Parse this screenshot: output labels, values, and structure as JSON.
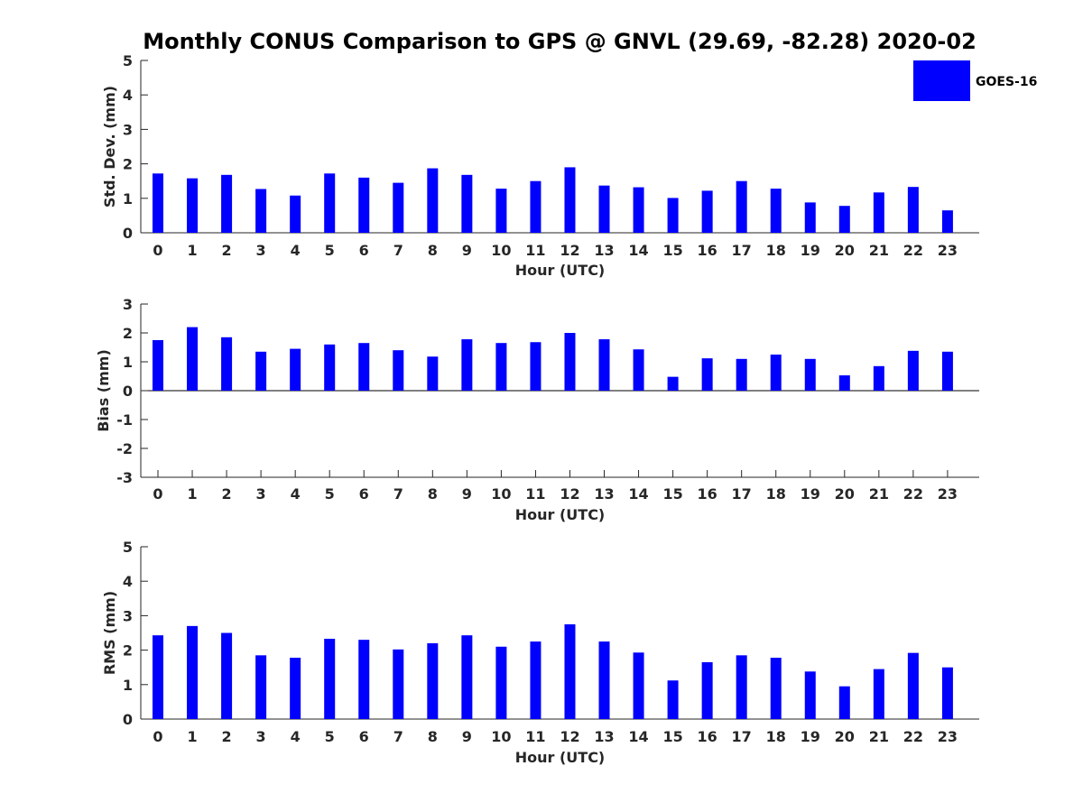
{
  "title": "Monthly CONUS Comparison to GPS @ GNVL (29.69, -82.28) 2020-02",
  "legend": {
    "label": "GOES-16",
    "color": "#0000ff",
    "placement": "top-right"
  },
  "chart_data": [
    {
      "type": "bar",
      "xlabel": "Hour (UTC)",
      "ylabel": "Std. Dev. (mm)",
      "ylim": [
        0,
        5
      ],
      "yticks": [
        "0",
        "1",
        "2",
        "3",
        "4",
        "5"
      ],
      "categories": [
        "0",
        "1",
        "2",
        "3",
        "4",
        "5",
        "6",
        "7",
        "8",
        "9",
        "10",
        "11",
        "12",
        "13",
        "14",
        "15",
        "16",
        "17",
        "18",
        "19",
        "20",
        "21",
        "22",
        "23"
      ],
      "series": [
        {
          "name": "GOES-16",
          "values": [
            1.72,
            1.58,
            1.68,
            1.27,
            1.08,
            1.72,
            1.6,
            1.45,
            1.87,
            1.68,
            1.28,
            1.5,
            1.9,
            1.37,
            1.32,
            1.01,
            1.22,
            1.5,
            1.28,
            0.88,
            0.78,
            1.17,
            1.33,
            0.65
          ]
        }
      ]
    },
    {
      "type": "bar",
      "xlabel": "Hour (UTC)",
      "ylabel": "Bias (mm)",
      "ylim": [
        -3,
        3
      ],
      "yticks": [
        "-3",
        "-2",
        "-1",
        "0",
        "1",
        "2",
        "3"
      ],
      "categories": [
        "0",
        "1",
        "2",
        "3",
        "4",
        "5",
        "6",
        "7",
        "8",
        "9",
        "10",
        "11",
        "12",
        "13",
        "14",
        "15",
        "16",
        "17",
        "18",
        "19",
        "20",
        "21",
        "22",
        "23"
      ],
      "series": [
        {
          "name": "GOES-16",
          "values": [
            1.75,
            2.2,
            1.85,
            1.35,
            1.45,
            1.6,
            1.65,
            1.4,
            1.18,
            1.78,
            1.65,
            1.68,
            2.0,
            1.78,
            1.43,
            0.48,
            1.12,
            1.1,
            1.25,
            1.1,
            0.53,
            0.85,
            1.38,
            1.35
          ]
        }
      ]
    },
    {
      "type": "bar",
      "xlabel": "Hour (UTC)",
      "ylabel": "RMS (mm)",
      "ylim": [
        0,
        5
      ],
      "yticks": [
        "0",
        "1",
        "2",
        "3",
        "4",
        "5"
      ],
      "categories": [
        "0",
        "1",
        "2",
        "3",
        "4",
        "5",
        "6",
        "7",
        "8",
        "9",
        "10",
        "11",
        "12",
        "13",
        "14",
        "15",
        "16",
        "17",
        "18",
        "19",
        "20",
        "21",
        "22",
        "23"
      ],
      "series": [
        {
          "name": "GOES-16",
          "values": [
            2.43,
            2.7,
            2.5,
            1.85,
            1.78,
            2.33,
            2.3,
            2.02,
            2.2,
            2.43,
            2.1,
            2.25,
            2.75,
            2.25,
            1.93,
            1.12,
            1.65,
            1.85,
            1.78,
            1.38,
            0.95,
            1.45,
            1.92,
            1.5
          ]
        }
      ]
    }
  ]
}
